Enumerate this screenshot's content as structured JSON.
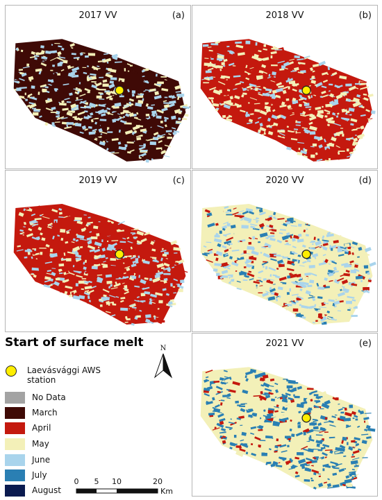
{
  "panels": [
    {
      "title": "2017 VV",
      "label": "(a)",
      "base": "#3f0a06",
      "mix": [
        "#f3f0b8",
        "#a9d4ec",
        "#f3f0b8",
        "#a9d4ec",
        "#3f0a06"
      ]
    },
    {
      "title": "2018 VV",
      "label": "(b)",
      "base": "#c4190e",
      "mix": [
        "#f3f0b8",
        "#a9d4ec",
        "#c4190e",
        "#f3f0b8"
      ]
    },
    {
      "title": "2019 VV",
      "label": "(c)",
      "base": "#c4190e",
      "mix": [
        "#f3f0b8",
        "#a9d4ec",
        "#c4190e",
        "#f3f0b8",
        "#a9d4ec"
      ]
    },
    {
      "title": "2020 VV",
      "label": "(d)",
      "base": "#f3f0b8",
      "mix": [
        "#a9d4ec",
        "#f3f0b8",
        "#a9d4ec",
        "#c4190e",
        "#2a7fb3"
      ]
    },
    {
      "title": "2021 VV",
      "label": "(e)",
      "base": "#f3f0b8",
      "mix": [
        "#2a7fb3",
        "#f3f0b8",
        "#2a7fb3",
        "#2a7fb3",
        "#c4190e"
      ]
    }
  ],
  "legend": {
    "title": "Start of surface melt",
    "station_label": "Laevásvággi AWS station",
    "items": [
      {
        "label": "No Data",
        "color": "#a3a3a3"
      },
      {
        "label": "March",
        "color": "#3f0a06"
      },
      {
        "label": "April",
        "color": "#c4190e"
      },
      {
        "label": "May",
        "color": "#f3f0b8"
      },
      {
        "label": "June",
        "color": "#a9d4ec"
      },
      {
        "label": "July",
        "color": "#2a7fb3"
      },
      {
        "label": "August",
        "color": "#0a1a4f"
      }
    ]
  },
  "north_arrow": {
    "label": "N"
  },
  "scale_bar": {
    "ticks": [
      "0",
      "5",
      "10",
      "20"
    ],
    "unit": "Km"
  }
}
